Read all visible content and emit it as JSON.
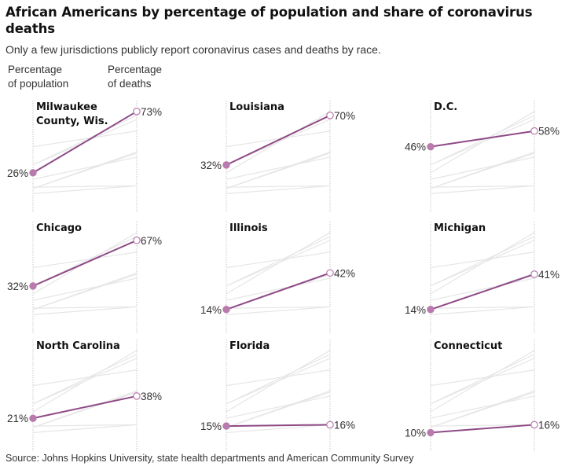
{
  "header": {
    "title": "African Americans by percentage of population and share of coronavirus deaths",
    "subtitle": "Only a few jurisdictions publicly report coronavirus cases and deaths by race.",
    "left_axis_label": "Percentage\nof population",
    "right_axis_label": "Percentage\nof deaths"
  },
  "source": "Source: Johns Hopkins University, state health departments and American Community Survey",
  "colors": {
    "highlight": "#8e4a86",
    "dot": "#b97aae",
    "context": "#e6e6e6",
    "axis": "#c8c8c8"
  },
  "chart_data": {
    "type": "slope",
    "title": "African Americans by percentage of population and share of coronavirus deaths",
    "subtitle": "Only a few jurisdictions publicly report coronavirus cases and deaths by race.",
    "xlabels": [
      "Percentage of population",
      "Percentage of deaths"
    ],
    "ylim": [
      0,
      80
    ],
    "value_format": "percent",
    "panels": [
      {
        "name": "Milwaukee County, Wis.",
        "population": 26,
        "deaths": 73
      },
      {
        "name": "Louisiana",
        "population": 32,
        "deaths": 70
      },
      {
        "name": "D.C.",
        "population": 46,
        "deaths": 58
      },
      {
        "name": "Chicago",
        "population": 32,
        "deaths": 67
      },
      {
        "name": "Illinois",
        "population": 14,
        "deaths": 42
      },
      {
        "name": "Michigan",
        "population": 14,
        "deaths": 41
      },
      {
        "name": "North Carolina",
        "population": 21,
        "deaths": 38
      },
      {
        "name": "Florida",
        "population": 15,
        "deaths": 16
      },
      {
        "name": "Connecticut",
        "population": 10,
        "deaths": 16
      }
    ]
  }
}
